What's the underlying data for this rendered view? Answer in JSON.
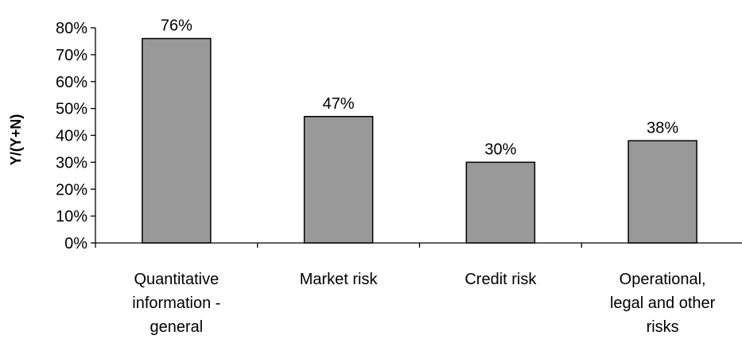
{
  "chart_data": {
    "type": "bar",
    "title": "",
    "xlabel": "",
    "ylabel": "Y/(Y+N)",
    "categories": [
      [
        "Quantitative",
        "information -",
        "general"
      ],
      [
        "Market risk"
      ],
      [
        "Credit risk"
      ],
      [
        "Operational,",
        "legal and other",
        "risks"
      ]
    ],
    "values": [
      0.76,
      0.47,
      0.3,
      0.38
    ],
    "data_labels": [
      "76%",
      "47%",
      "30%",
      "38%"
    ],
    "ylim": [
      0,
      0.8
    ],
    "yticks": [
      0,
      0.1,
      0.2,
      0.3,
      0.4,
      0.5,
      0.6,
      0.7,
      0.8
    ],
    "ytick_labels": [
      "0%",
      "10%",
      "20%",
      "30%",
      "40%",
      "50%",
      "60%",
      "70%",
      "80%"
    ],
    "bar_color": "#999999",
    "bar_edge_color": "#000000",
    "grid": false,
    "legend": "none"
  }
}
